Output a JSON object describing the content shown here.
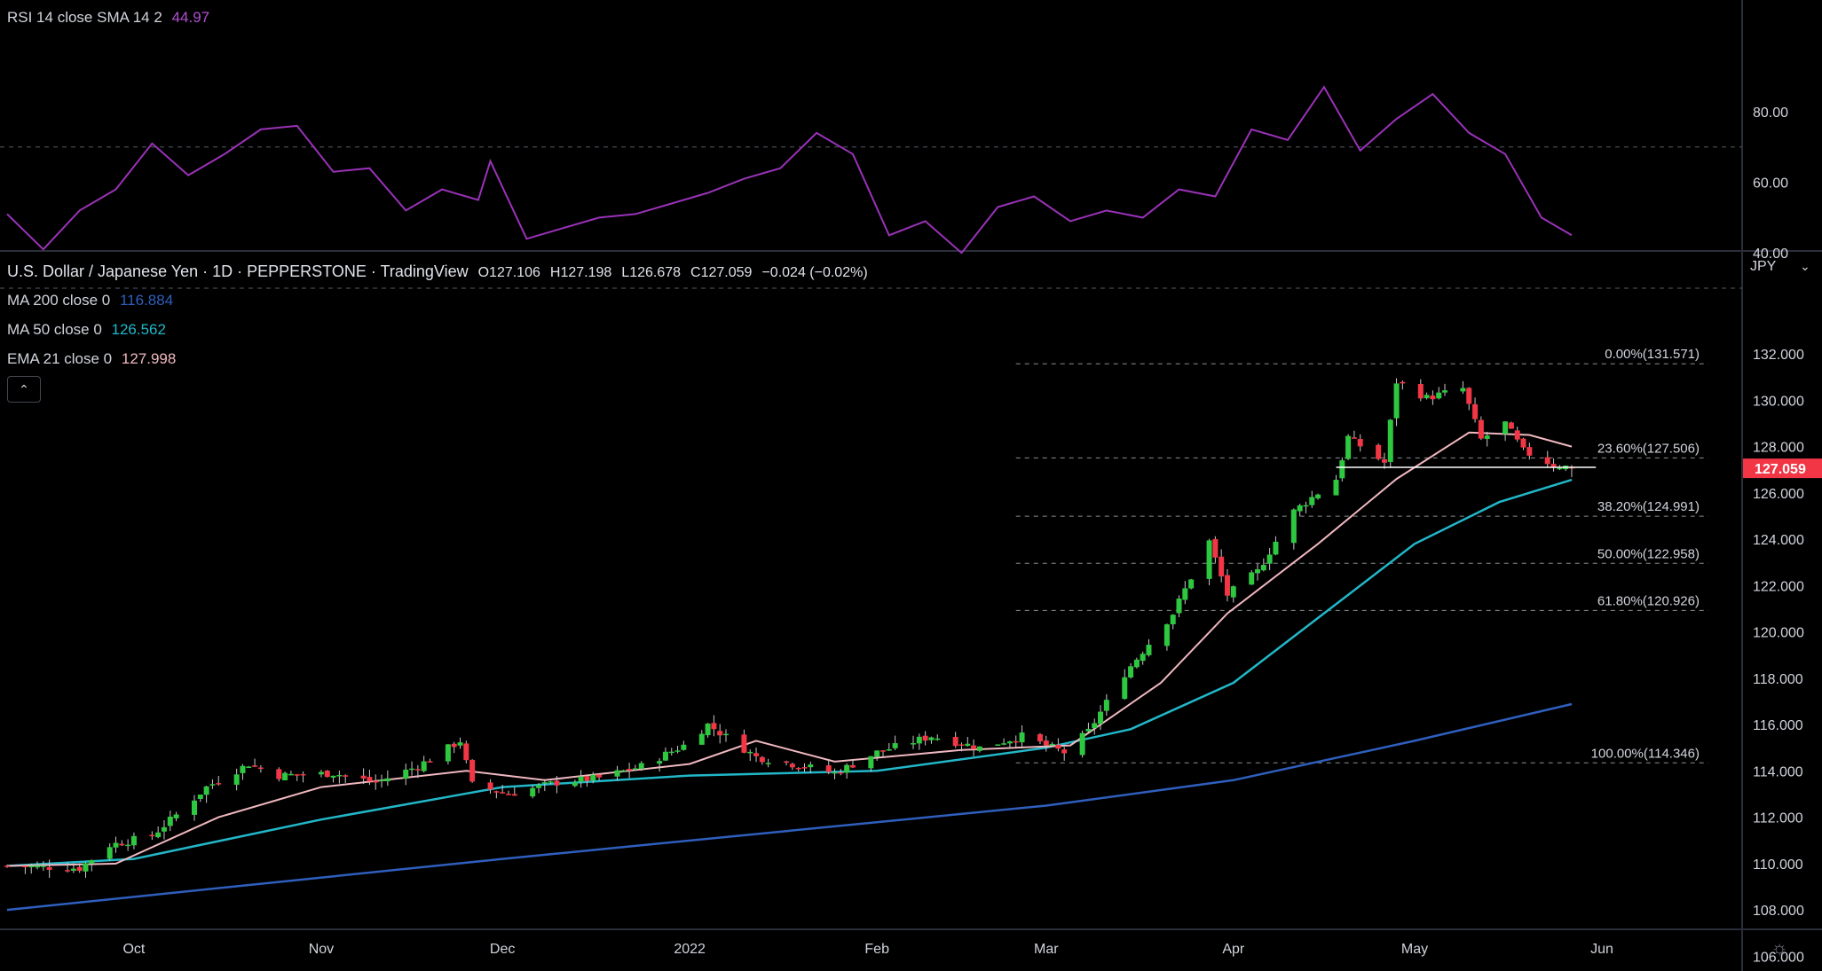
{
  "rsi_legend": {
    "label": "RSI 14 close SMA 14 2",
    "value": "44.97",
    "color": "#b04fcf"
  },
  "header": {
    "title": "U.S. Dollar / Japanese Yen · 1D · PEPPERSTONE · TradingView",
    "open": "O127.106",
    "high": "H127.198",
    "low": "L126.678",
    "close": "C127.059",
    "change": "−0.024 (−0.02%)"
  },
  "indicators": [
    {
      "label": "MA 200 close 0",
      "value": "116.884",
      "color": "#2f5fbe"
    },
    {
      "label": "MA 50 close 0",
      "value": "126.562",
      "color": "#22b7c8"
    },
    {
      "label": "EMA 21 close 0",
      "value": "127.998",
      "color": "#f0b8c0"
    }
  ],
  "collapse_icon": "chevron-up-icon",
  "currency": "JPY",
  "current_price": {
    "value": "127.059",
    "color": "#f23645"
  },
  "colors": {
    "up": "#2ec840",
    "down": "#f23645",
    "fib": "#8a8d95",
    "rsi": "#9a32b8"
  },
  "chart_data": [
    {
      "type": "line",
      "name": "RSI",
      "ylim": [
        28,
        92
      ],
      "yticks": [
        "80.00",
        "60.00",
        "40.00"
      ],
      "levels": [
        70,
        30
      ],
      "x": [
        "2021-09-10",
        "2021-09-16",
        "2021-09-22",
        "2021-09-28",
        "2021-10-04",
        "2021-10-10",
        "2021-10-16",
        "2021-10-22",
        "2021-10-28",
        "2021-11-03",
        "2021-11-09",
        "2021-11-15",
        "2021-11-21",
        "2021-11-27",
        "2021-11-29",
        "2021-12-05",
        "2021-12-11",
        "2021-12-17",
        "2021-12-23",
        "2021-12-29",
        "2022-01-04",
        "2022-01-10",
        "2022-01-16",
        "2022-01-22",
        "2022-01-28",
        "2022-02-03",
        "2022-02-09",
        "2022-02-15",
        "2022-02-21",
        "2022-02-27",
        "2022-03-05",
        "2022-03-11",
        "2022-03-17",
        "2022-03-23",
        "2022-03-29",
        "2022-04-04",
        "2022-04-10",
        "2022-04-16",
        "2022-04-22",
        "2022-04-28",
        "2022-05-04",
        "2022-05-10",
        "2022-05-16",
        "2022-05-22",
        "2022-05-27"
      ],
      "y": [
        51,
        41,
        52,
        58,
        71,
        62,
        68,
        75,
        76,
        63,
        64,
        52,
        58,
        55,
        66,
        44,
        47,
        50,
        51,
        54,
        57,
        61,
        64,
        74,
        68,
        45,
        49,
        40,
        53,
        56,
        49,
        52,
        50,
        58,
        56,
        75,
        72,
        87,
        69,
        78,
        85,
        74,
        68,
        50,
        45
      ]
    },
    {
      "type": "candlestick",
      "title": "U.S. Dollar / Japanese Yen · 1D · PEPPERSTONE · TradingView",
      "ylim": [
        104.5,
        133.5
      ],
      "yticks": [
        "132.000",
        "130.000",
        "128.000",
        "126.000",
        "124.000",
        "122.000",
        "120.000",
        "118.000",
        "116.000",
        "114.000",
        "112.000",
        "110.000",
        "108.000",
        "106.000"
      ],
      "xticks": [
        {
          "date": "2021-10-01",
          "label": "Oct"
        },
        {
          "date": "2021-11-01",
          "label": "Nov"
        },
        {
          "date": "2021-12-01",
          "label": "Dec"
        },
        {
          "date": "2022-01-01",
          "label": "2022"
        },
        {
          "date": "2022-02-01",
          "label": "Feb"
        },
        {
          "date": "2022-03-01",
          "label": "Mar"
        },
        {
          "date": "2022-04-01",
          "label": "Apr"
        },
        {
          "date": "2022-05-01",
          "label": "May"
        },
        {
          "date": "2022-06-01",
          "label": "Jun"
        }
      ],
      "close_anchors": [
        [
          "2021-09-10",
          109.9
        ],
        [
          "2021-09-22",
          109.8
        ],
        [
          "2021-09-27",
          110.8
        ],
        [
          "2021-10-04",
          111.2
        ],
        [
          "2021-10-08",
          112.1
        ],
        [
          "2021-10-13",
          113.3
        ],
        [
          "2021-10-20",
          114.3
        ],
        [
          "2021-10-25",
          113.8
        ],
        [
          "2021-11-03",
          113.9
        ],
        [
          "2021-11-10",
          113.5
        ],
        [
          "2021-11-17",
          114.2
        ],
        [
          "2021-11-24",
          115.3
        ],
        [
          "2021-11-26",
          113.4
        ],
        [
          "2021-12-02",
          113.0
        ],
        [
          "2021-12-10",
          113.5
        ],
        [
          "2021-12-17",
          113.7
        ],
        [
          "2021-12-24",
          114.2
        ],
        [
          "2021-12-31",
          115.1
        ],
        [
          "2022-01-04",
          116.0
        ],
        [
          "2022-01-12",
          114.6
        ],
        [
          "2022-01-20",
          114.2
        ],
        [
          "2022-01-25",
          113.9
        ],
        [
          "2022-02-01",
          114.8
        ],
        [
          "2022-02-10",
          115.5
        ],
        [
          "2022-02-18",
          115.0
        ],
        [
          "2022-02-25",
          115.5
        ],
        [
          "2022-03-04",
          114.8
        ],
        [
          "2022-03-08",
          115.7
        ],
        [
          "2022-03-14",
          118.2
        ],
        [
          "2022-03-22",
          120.8
        ],
        [
          "2022-03-28",
          123.9
        ],
        [
          "2022-03-31",
          121.6
        ],
        [
          "2022-04-05",
          122.6
        ],
        [
          "2022-04-11",
          125.2
        ],
        [
          "2022-04-18",
          126.6
        ],
        [
          "2022-04-20",
          128.4
        ],
        [
          "2022-04-26",
          127.3
        ],
        [
          "2022-04-28",
          130.8
        ],
        [
          "2022-05-03",
          130.1
        ],
        [
          "2022-05-09",
          130.5
        ],
        [
          "2022-05-12",
          128.3
        ],
        [
          "2022-05-16",
          129.0
        ],
        [
          "2022-05-19",
          127.8
        ],
        [
          "2022-05-24",
          127.2
        ],
        [
          "2022-05-27",
          127.1
        ]
      ],
      "last_ohlc": {
        "open": 127.106,
        "high": 127.198,
        "low": 126.678,
        "close": 127.059
      },
      "sma200": [
        [
          "2021-09-10",
          108.0
        ],
        [
          "2021-12-01",
          110.2
        ],
        [
          "2022-03-01",
          112.5
        ],
        [
          "2022-04-01",
          113.6
        ],
        [
          "2022-05-01",
          115.3
        ],
        [
          "2022-05-27",
          116.884
        ]
      ],
      "sma50": [
        [
          "2021-09-10",
          109.9
        ],
        [
          "2021-10-01",
          110.2
        ],
        [
          "2021-11-01",
          111.9
        ],
        [
          "2021-12-01",
          113.3
        ],
        [
          "2022-01-01",
          113.8
        ],
        [
          "2022-02-01",
          114.0
        ],
        [
          "2022-03-01",
          115.0
        ],
        [
          "2022-03-15",
          115.8
        ],
        [
          "2022-04-01",
          117.8
        ],
        [
          "2022-04-15",
          120.6
        ],
        [
          "2022-05-01",
          123.8
        ],
        [
          "2022-05-15",
          125.6
        ],
        [
          "2022-05-27",
          126.562
        ]
      ],
      "ema21": [
        [
          "2021-09-10",
          109.9
        ],
        [
          "2021-09-28",
          110.0
        ],
        [
          "2021-10-15",
          112.0
        ],
        [
          "2021-11-01",
          113.3
        ],
        [
          "2021-11-25",
          114.0
        ],
        [
          "2021-12-08",
          113.6
        ],
        [
          "2022-01-01",
          114.3
        ],
        [
          "2022-01-12",
          115.3
        ],
        [
          "2022-01-25",
          114.4
        ],
        [
          "2022-02-15",
          114.9
        ],
        [
          "2022-03-05",
          115.1
        ],
        [
          "2022-03-20",
          117.8
        ],
        [
          "2022-03-31",
          120.8
        ],
        [
          "2022-04-15",
          123.8
        ],
        [
          "2022-04-28",
          126.6
        ],
        [
          "2022-05-10",
          128.6
        ],
        [
          "2022-05-20",
          128.5
        ],
        [
          "2022-05-27",
          127.998
        ]
      ],
      "fibonacci": [
        {
          "label": "0.00%(131.571)",
          "value": 131.571
        },
        {
          "label": "23.60%(127.506)",
          "value": 127.506
        },
        {
          "label": "38.20%(124.991)",
          "value": 124.991
        },
        {
          "label": "50.00%(122.958)",
          "value": 122.958
        },
        {
          "label": "61.80%(120.926)",
          "value": 120.926
        },
        {
          "label": "100.00%(114.346)",
          "value": 114.346
        }
      ],
      "fib_start": "2022-02-24",
      "support_line": {
        "from": "2022-04-18",
        "to": "2022-05-31",
        "value": 127.1
      }
    }
  ]
}
